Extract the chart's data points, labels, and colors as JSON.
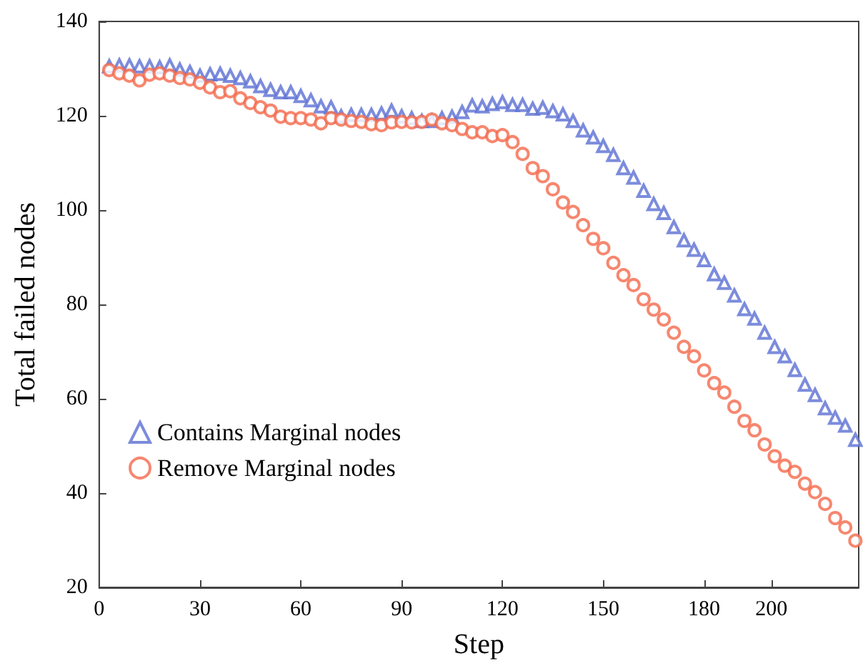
{
  "chart_data": {
    "type": "scatter",
    "xlabel": "Step",
    "ylabel": "Total failed nodes",
    "x": [
      3,
      6,
      9,
      12,
      15,
      18,
      21,
      24,
      27,
      30,
      33,
      36,
      39,
      42,
      45,
      48,
      51,
      54,
      57,
      60,
      63,
      66,
      69,
      72,
      75,
      78,
      81,
      84,
      87,
      90,
      93,
      96,
      99,
      102,
      105,
      108,
      111,
      114,
      117,
      120,
      123,
      126,
      129,
      132,
      135,
      138,
      141,
      144,
      147,
      150,
      153,
      156,
      159,
      162,
      165,
      168,
      171,
      174,
      177,
      180,
      183,
      186,
      189,
      192,
      195,
      198,
      201,
      204,
      207,
      210,
      213,
      216,
      219,
      222,
      225
    ],
    "series": [
      {
        "name": "Contains Marginal nodes",
        "color": "#5b6fd3",
        "marker": "triangle",
        "values": [
          130.5,
          130.7,
          130.7,
          130.5,
          130.5,
          130.3,
          130.7,
          129.8,
          129.3,
          128.5,
          128.8,
          128.9,
          128.5,
          128.0,
          127.3,
          126.3,
          125.5,
          125.0,
          125.0,
          124.2,
          123.3,
          122.0,
          121.8,
          119.9,
          120.2,
          120.2,
          120.2,
          120.5,
          121.1,
          119.9,
          119.5,
          118.9,
          118.9,
          119.5,
          119.8,
          120.8,
          122.2,
          122.0,
          122.5,
          122.9,
          122.3,
          122.3,
          121.5,
          121.7,
          121.0,
          120.3,
          118.9,
          116.9,
          115.4,
          113.6,
          111.7,
          108.9,
          106.9,
          104.1,
          101.3,
          99.4,
          96.4,
          93.6,
          91.6,
          89.4,
          86.4,
          84.6,
          81.9,
          79.0,
          77.0,
          74.0,
          71.0,
          69.0,
          66.1,
          63.0,
          60.8,
          58.0,
          56.0,
          54.3,
          51.3
        ]
      },
      {
        "name": "Remove Marginal nodes",
        "color": "#f4694b",
        "marker": "circle",
        "values": [
          129.7,
          129.0,
          128.5,
          127.5,
          128.7,
          129.0,
          128.5,
          128.0,
          127.7,
          127.0,
          126.0,
          125.0,
          125.2,
          123.7,
          122.7,
          121.8,
          121.1,
          119.8,
          119.5,
          119.5,
          119.2,
          118.4,
          119.5,
          119.2,
          118.9,
          118.7,
          118.2,
          118.0,
          118.6,
          118.7,
          118.6,
          118.7,
          119.2,
          118.4,
          118.0,
          117.2,
          116.5,
          116.5,
          115.7,
          115.9,
          114.4,
          111.9,
          108.9,
          107.2,
          104.4,
          101.6,
          99.6,
          96.8,
          93.9,
          91.9,
          88.8,
          86.2,
          84.1,
          81.1,
          78.9,
          76.8,
          74.0,
          71.0,
          69.0,
          66.0,
          63.3,
          61.3,
          58.3,
          55.3,
          53.3,
          50.3,
          47.8,
          45.8,
          44.5,
          42.0,
          40.2,
          37.7,
          34.7,
          32.7,
          29.9
        ]
      }
    ],
    "xlim": [
      0,
      226
    ],
    "xticks": [
      0,
      30,
      60,
      90,
      120,
      150,
      180,
      200
    ],
    "ylim": [
      20,
      140
    ],
    "yticks": [
      20,
      40,
      60,
      80,
      100,
      120,
      140
    ],
    "grid": false,
    "legend": "bottom left"
  }
}
